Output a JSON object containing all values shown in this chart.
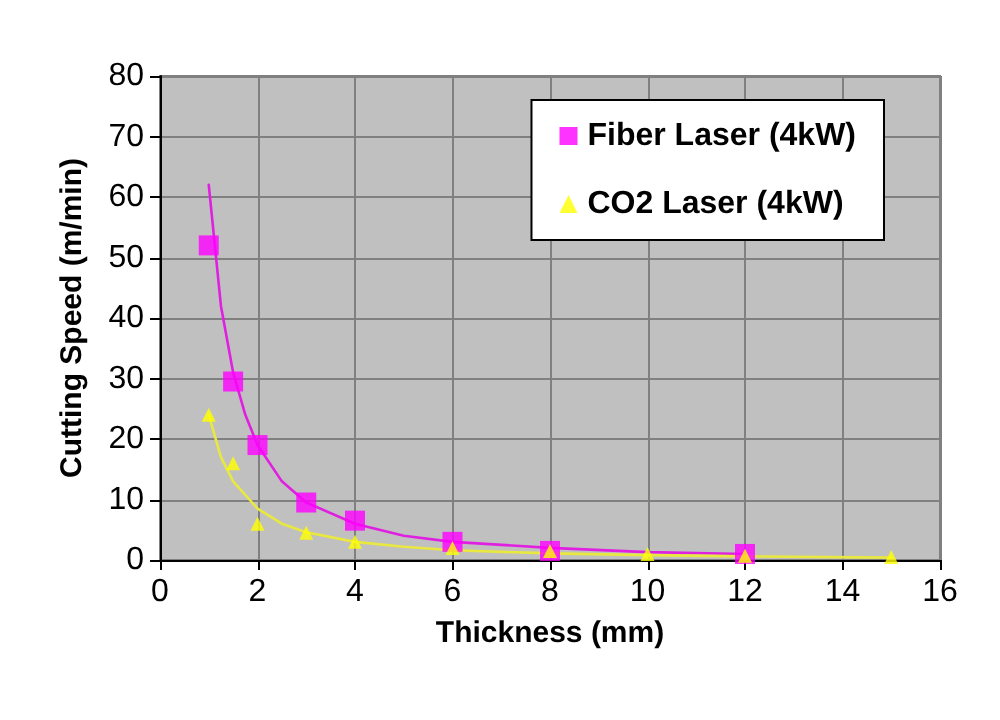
{
  "chart_data": {
    "type": "scatter",
    "xlabel": "Thickness (mm)",
    "ylabel": "Cutting Speed (m/min)",
    "xlim": [
      0,
      16
    ],
    "xticks": [
      0,
      2,
      4,
      6,
      8,
      10,
      12,
      14,
      16
    ],
    "ylim": [
      0,
      80
    ],
    "yticks": [
      0,
      10,
      20,
      30,
      40,
      50,
      60,
      70,
      80
    ],
    "grid": true,
    "legend": "top right",
    "series": [
      {
        "type": "line",
        "color": "#e020e0",
        "marker": "none",
        "x": [
          1,
          1.25,
          1.5,
          1.75,
          2,
          2.5,
          3,
          4,
          5,
          6,
          8,
          10,
          12
        ],
        "values": [
          62,
          42,
          31,
          24,
          19,
          13,
          9.5,
          6,
          4,
          3,
          2,
          1.3,
          1
        ]
      },
      {
        "type": "line",
        "color": "#e8e840",
        "marker": "none",
        "x": [
          1,
          1.25,
          1.5,
          2,
          2.5,
          3,
          4,
          5,
          6,
          8,
          10,
          12,
          15
        ],
        "values": [
          24,
          17,
          13,
          8.5,
          6,
          4.6,
          3,
          2.2,
          1.6,
          1.1,
          0.8,
          0.6,
          0.4
        ]
      },
      {
        "name": "Fiber Laser (4kW)",
        "color": "#ff00ff",
        "marker": "square",
        "x": [
          1,
          1.5,
          2,
          3,
          4,
          6,
          8,
          12
        ],
        "values": [
          52,
          29.5,
          19,
          9.5,
          6.5,
          3,
          1.5,
          1
        ]
      },
      {
        "name": "CO2 Laser (4kW)",
        "color": "#ffff00",
        "marker": "triangle",
        "x": [
          1,
          1.5,
          2,
          3,
          4,
          6,
          8,
          10,
          12,
          15
        ],
        "values": [
          24,
          16,
          6,
          4.5,
          3,
          2,
          1.5,
          1,
          0.7,
          0.5
        ]
      }
    ]
  }
}
